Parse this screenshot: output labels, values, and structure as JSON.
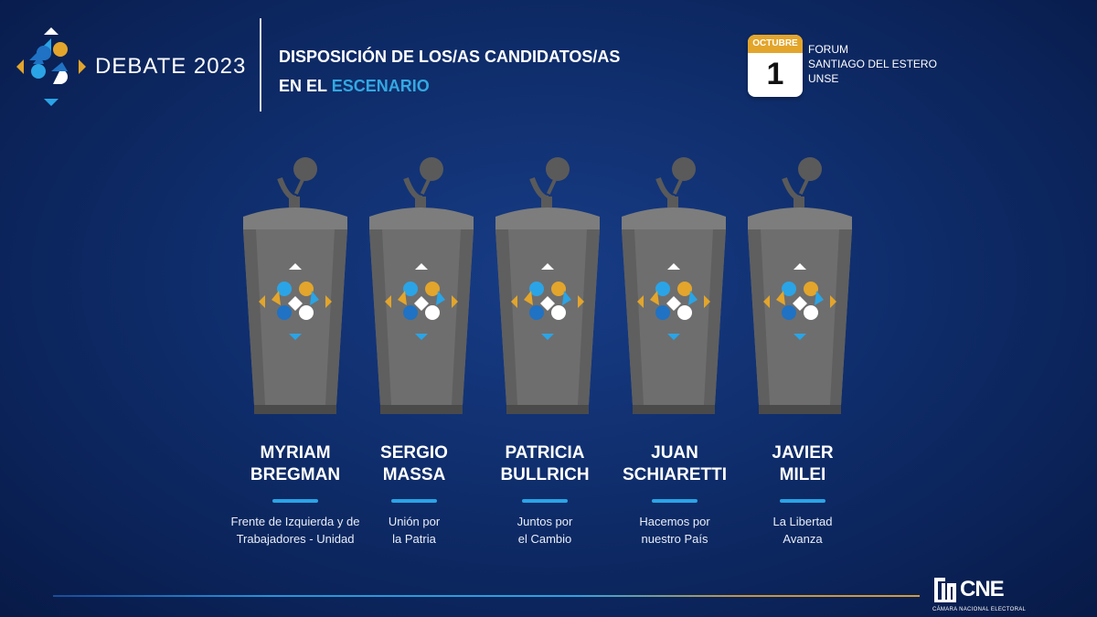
{
  "brand": {
    "title": "DEBATE 2023"
  },
  "header": {
    "line1": "DISPOSICIÓN DE LOS/AS CANDIDATOS/AS",
    "line2_prefix": "EN EL ",
    "line2_accent": "ESCENARIO"
  },
  "event": {
    "month": "OCTUBRE",
    "day": "1",
    "venue": [
      "FORUM",
      "SANTIAGO DEL ESTERO",
      "UNSE"
    ]
  },
  "candidates": [
    {
      "name_line1": "MYRIAM",
      "name_line2": "BREGMAN",
      "party_line1": "Frente de Izquierda y de",
      "party_line2": "Trabajadores - Unidad"
    },
    {
      "name_line1": "SERGIO",
      "name_line2": "MASSA",
      "party_line1": "Unión por",
      "party_line2": "la Patria"
    },
    {
      "name_line1": "PATRICIA",
      "name_line2": "BULLRICH",
      "party_line1": "Juntos por",
      "party_line2": "el Cambio"
    },
    {
      "name_line1": "JUAN",
      "name_line2": "SCHIARETTI",
      "party_line1": "Hacemos por",
      "party_line2": "nuestro País"
    },
    {
      "name_line1": "JAVIER",
      "name_line2": "MILEI",
      "party_line1": "La Libertad",
      "party_line2": "Avanza"
    }
  ],
  "footer": {
    "org_short": "CNE",
    "org_full": "CÁMARA NACIONAL ELECTORAL"
  },
  "colors": {
    "blue_accent": "#2aa4e6",
    "gold": "#e3a52b",
    "podium": "#6e6e6e"
  },
  "icons": {
    "logo": "debate-diamond-icon",
    "calendar": "calendar-icon",
    "microphone": "microphone-icon",
    "cne": "cne-building-icon"
  }
}
